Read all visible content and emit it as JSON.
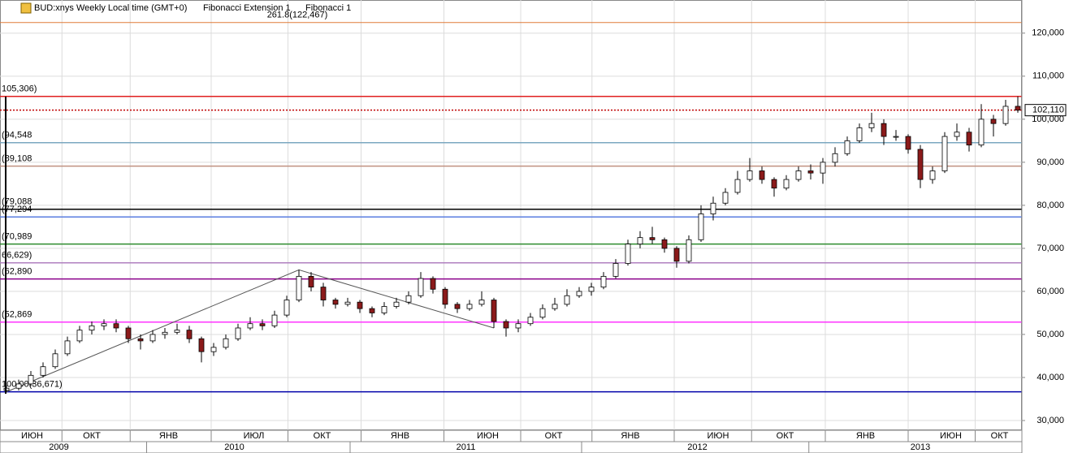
{
  "header": {
    "symbol": "BUD:xnys Weekly Local time (GMT+0)",
    "tool1": "Fibonacci Extension 1",
    "tool2": "Fibonacci 1"
  },
  "chart_data": {
    "type": "candlestick",
    "open": [
      37000,
      37500,
      38500,
      40500,
      42500,
      45500,
      48500,
      51000,
      52000,
      52500,
      51500,
      49000,
      48500,
      50000,
      50500,
      51000,
      49000,
      46000,
      47000,
      49000,
      51500,
      52500,
      52000,
      54500,
      58000,
      63500,
      61000,
      58000,
      57000,
      57500,
      56000,
      55000,
      56500,
      57500,
      59000,
      63000,
      60500,
      57000,
      56000,
      57000,
      58000,
      53000,
      51500,
      52500,
      54000,
      56000,
      57000,
      59000,
      60000,
      61000,
      63500,
      66500,
      71000,
      72500,
      72000,
      70000,
      67000,
      72000,
      78000,
      80500,
      83000,
      86000,
      88000,
      86000,
      84000,
      86000,
      88000,
      87500,
      90000,
      92000,
      95000,
      98000,
      99000,
      96000,
      96000,
      93000,
      86000,
      88000,
      96000,
      97000,
      94000,
      100000,
      99000,
      103000
    ],
    "high": [
      38200,
      39500,
      41500,
      43500,
      46500,
      49500,
      52000,
      53000,
      53500,
      53500,
      52000,
      50000,
      51000,
      51500,
      52500,
      52000,
      49500,
      48000,
      50000,
      52500,
      54000,
      53500,
      55500,
      59000,
      65000,
      64500,
      62000,
      58500,
      58500,
      58000,
      56500,
      57500,
      58500,
      60000,
      64500,
      63500,
      61000,
      57500,
      58000,
      60000,
      58500,
      53500,
      53500,
      55000,
      57000,
      58500,
      60500,
      61000,
      62000,
      64500,
      67500,
      72000,
      74000,
      75000,
      72500,
      70500,
      73000,
      80000,
      82000,
      84000,
      88000,
      91000,
      89000,
      86500,
      87000,
      89000,
      89500,
      91000,
      93500,
      96000,
      99000,
      101500,
      100000,
      97500,
      96500,
      94000,
      89000,
      97000,
      99000,
      98000,
      103500,
      101000,
      104500,
      105306
    ],
    "low": [
      36671,
      37000,
      38000,
      40000,
      42000,
      45000,
      48000,
      50000,
      51000,
      50500,
      48000,
      46500,
      48000,
      49000,
      50000,
      48000,
      43500,
      45000,
      46500,
      48500,
      51000,
      51000,
      51500,
      54000,
      57500,
      60000,
      56500,
      56000,
      56500,
      55000,
      54000,
      54500,
      56000,
      57000,
      58500,
      59500,
      56000,
      55000,
      55500,
      56500,
      51500,
      49500,
      50500,
      52000,
      53500,
      55500,
      56500,
      58500,
      59000,
      60500,
      63000,
      66000,
      70000,
      71000,
      69000,
      65500,
      66500,
      71500,
      76500,
      80000,
      82500,
      85500,
      85000,
      82000,
      83500,
      85500,
      86000,
      85000,
      89000,
      91500,
      94500,
      97000,
      94000,
      95000,
      92000,
      84000,
      85000,
      87500,
      95000,
      92500,
      93500,
      96000,
      98500,
      101500
    ],
    "close": [
      37500,
      38500,
      40500,
      42500,
      45500,
      48500,
      51000,
      52000,
      52500,
      51500,
      49000,
      48500,
      50000,
      50500,
      51000,
      49000,
      46000,
      47000,
      49000,
      51500,
      52500,
      52000,
      54500,
      58000,
      63500,
      61000,
      58000,
      57000,
      57500,
      56000,
      55000,
      56500,
      57500,
      59000,
      63000,
      60500,
      57000,
      56000,
      57000,
      58000,
      53000,
      51500,
      52500,
      54000,
      56000,
      57000,
      59000,
      60000,
      61000,
      63500,
      66500,
      71000,
      72500,
      72000,
      70000,
      67000,
      72000,
      78000,
      80500,
      83000,
      86000,
      88000,
      86000,
      84000,
      86000,
      88000,
      87500,
      90000,
      92000,
      95000,
      98000,
      99000,
      96000,
      96000,
      93000,
      86000,
      88000,
      96000,
      97000,
      94000,
      100000,
      99000,
      103000,
      102110
    ],
    "up_color": "#ffffff",
    "down_color": "#8b1a1a",
    "last_price": {
      "value": 102110,
      "label": "102,110"
    },
    "ylim": [
      28300,
      127700
    ],
    "yticks": [
      {
        "value": 30000,
        "label": "30,000"
      },
      {
        "value": 40000,
        "label": "40,000"
      },
      {
        "value": 50000,
        "label": "50,000"
      },
      {
        "value": 60000,
        "label": "60,000"
      },
      {
        "value": 70000,
        "label": "70,000"
      },
      {
        "value": 80000,
        "label": "80,000"
      },
      {
        "value": 90000,
        "label": "90,000"
      },
      {
        "value": 100000,
        "label": "100,000"
      },
      {
        "value": 110000,
        "label": "110,000"
      },
      {
        "value": 120000,
        "label": "120,000"
      }
    ],
    "levels": [
      {
        "value": 122467,
        "label": "261.8(122,467)",
        "color": "#e07b39"
      },
      {
        "value": 105306,
        "label": "105,306)",
        "color": "#e02020"
      },
      {
        "value": 94548,
        "label": "(94,548",
        "color": "#7ba7c0"
      },
      {
        "value": 89108,
        "label": "(89,108",
        "color": "#c09080"
      },
      {
        "value": 79088,
        "label": "(79,088",
        "color": "#000000"
      },
      {
        "value": 77294,
        "label": "(77,294",
        "color": "#5a7ee0"
      },
      {
        "value": 70989,
        "label": "(70,989",
        "color": "#2e8b2e"
      },
      {
        "value": 66629,
        "label": "66,629)",
        "color": "#b080c0"
      },
      {
        "value": 62890,
        "label": "(62,890",
        "color": "#8b008b"
      },
      {
        "value": 52869,
        "label": "(52,869",
        "color": "#ff33ff"
      },
      {
        "value": 36671,
        "label": "100,00(36,671)",
        "color": "#0000aa"
      }
    ],
    "months": [
      {
        "value": 2.1,
        "label": "ИЮН"
      },
      {
        "value": 7,
        "label": "ОКТ"
      },
      {
        "value": 13.3,
        "label": "ЯНВ"
      },
      {
        "value": 20.3,
        "label": "ИЮЛ"
      },
      {
        "value": 25.9,
        "label": "ОКТ"
      },
      {
        "value": 32.3,
        "label": "ЯНВ"
      },
      {
        "value": 39.5,
        "label": "ИЮН"
      },
      {
        "value": 44.9,
        "label": "ОКТ"
      },
      {
        "value": 51.2,
        "label": "ЯНВ"
      },
      {
        "value": 58.4,
        "label": "ИЮН"
      },
      {
        "value": 63.9,
        "label": "ОКТ"
      },
      {
        "value": 70.5,
        "label": "ЯНВ"
      },
      {
        "value": 77.5,
        "label": "ИЮН"
      },
      {
        "value": 81.5,
        "label": "ОКТ"
      }
    ],
    "years": [
      {
        "value": 4.3,
        "label": "2009"
      },
      {
        "value": 18.7,
        "label": "2010"
      },
      {
        "value": 37.7,
        "label": "2011"
      },
      {
        "value": 56.7,
        "label": "2012"
      },
      {
        "value": 75,
        "label": "2013"
      }
    ],
    "grid": true
  }
}
